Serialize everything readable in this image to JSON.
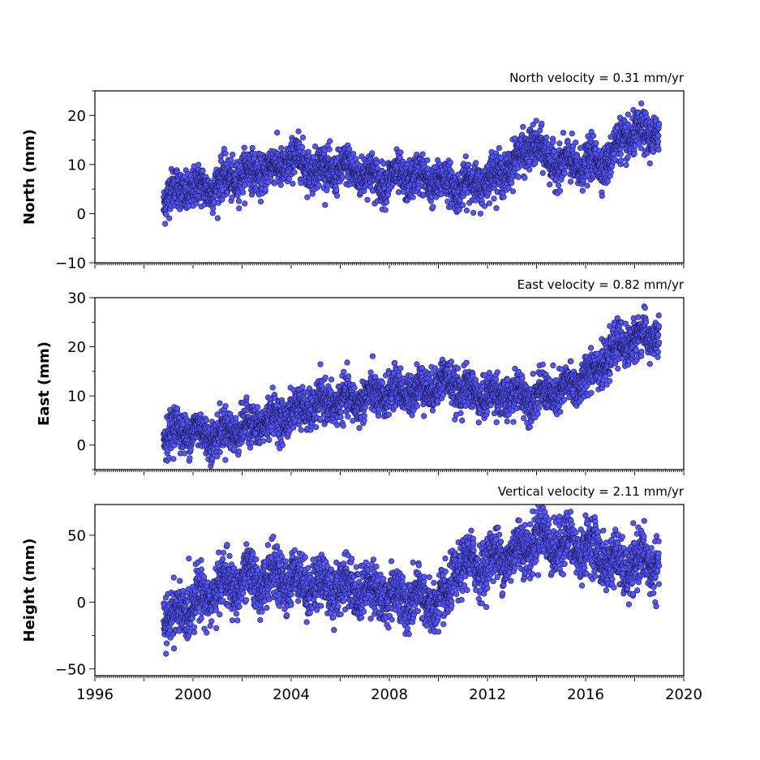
{
  "chart_data": [
    {
      "type": "scatter",
      "title": "North velocity = 0.31 mm/yr",
      "xlabel": "",
      "ylabel": "North (mm)",
      "xlim": [
        1996,
        2020
      ],
      "ylim": [
        -10,
        25
      ],
      "y_ticks": [
        -10,
        0,
        10,
        20
      ],
      "y_tick_labels": [
        "−10",
        "0",
        "10",
        "20"
      ],
      "x_ticks": [
        1996,
        1998,
        2000,
        2002,
        2004,
        2006,
        2008,
        2010,
        2012,
        2014,
        2016,
        2018,
        2020
      ],
      "grid": false,
      "marker_color": "#5555ff",
      "marker_edge_color": "#1a1a4a",
      "series": [
        {
          "x": [
            1998.8,
            1999.0,
            1999.3,
            1999.6,
            2000.0,
            2000.5,
            2001.0,
            2001.5,
            2002.0,
            2002.5,
            2003.0,
            2003.5,
            2004.0,
            2004.5,
            2005.0,
            2005.5,
            2006.0,
            2006.5,
            2007.0,
            2007.5,
            2008.0,
            2008.5,
            2009.0,
            2009.5,
            2010.0,
            2010.5,
            2011.0,
            2011.5,
            2012.0,
            2012.5,
            2013.0,
            2013.5,
            2013.8,
            2014.2,
            2014.6,
            2015.0,
            2015.5,
            2016.0,
            2016.5,
            2017.0,
            2017.3,
            2017.6,
            2018.0,
            2018.5,
            2019.0
          ],
          "y": [
            2.5,
            4,
            4.5,
            5,
            5,
            5,
            6,
            7,
            8,
            8.5,
            9,
            9.5,
            11,
            10.5,
            9,
            9,
            9,
            9,
            8,
            7,
            7,
            7.5,
            7.5,
            7,
            6.5,
            6,
            5.5,
            6,
            7,
            8,
            10,
            12,
            15,
            12,
            11,
            10,
            10,
            10,
            10.5,
            11,
            14,
            15.5,
            16,
            16,
            17
          ]
        }
      ]
    },
    {
      "type": "scatter",
      "title": "East velocity = 0.82 mm/yr",
      "xlabel": "",
      "ylabel": "East (mm)",
      "xlim": [
        1996,
        2020
      ],
      "ylim": [
        -5,
        30
      ],
      "y_ticks": [
        0,
        10,
        20,
        30
      ],
      "y_tick_labels": [
        "0",
        "10",
        "20",
        "30"
      ],
      "x_ticks": [
        1996,
        1998,
        2000,
        2002,
        2004,
        2006,
        2008,
        2010,
        2012,
        2014,
        2016,
        2018,
        2020
      ],
      "grid": false,
      "marker_color": "#5555ff",
      "marker_edge_color": "#1a1a4a",
      "series": [
        {
          "x": [
            1998.8,
            1999.0,
            1999.3,
            1999.6,
            2000.0,
            2000.5,
            2001.0,
            2001.5,
            2002.0,
            2002.5,
            2003.0,
            2003.5,
            2004.0,
            2004.5,
            2005.0,
            2005.5,
            2006.0,
            2006.5,
            2007.0,
            2007.5,
            2008.0,
            2008.5,
            2009.0,
            2009.5,
            2010.0,
            2010.5,
            2011.0,
            2011.5,
            2012.0,
            2012.5,
            2013.0,
            2013.5,
            2014.0,
            2014.5,
            2015.0,
            2015.5,
            2016.0,
            2016.5,
            2017.0,
            2017.3,
            2017.6,
            2018.0,
            2018.5,
            2019.0
          ],
          "y": [
            2,
            2,
            3,
            3,
            3,
            2,
            2,
            3,
            3.5,
            4,
            5,
            5.5,
            6.5,
            7.5,
            8,
            8.5,
            9,
            9,
            9.5,
            10,
            10.5,
            11,
            11,
            11.5,
            12.5,
            13,
            11,
            10.5,
            10,
            10,
            10,
            10,
            10,
            10.5,
            11,
            12,
            14,
            16,
            18,
            20,
            21,
            21.5,
            22,
            22.5
          ]
        }
      ]
    },
    {
      "type": "scatter",
      "title": "Vertical velocity = 2.11 mm/yr",
      "xlabel": "",
      "ylabel": "Height (mm)",
      "xlim": [
        1996,
        2020
      ],
      "ylim": [
        -55,
        73
      ],
      "y_ticks": [
        -50,
        0,
        50
      ],
      "y_tick_labels": [
        "−50",
        "0",
        "50"
      ],
      "x_ticks": [
        1996,
        1998,
        2000,
        2002,
        2004,
        2006,
        2008,
        2010,
        2012,
        2014,
        2016,
        2018,
        2020
      ],
      "x_tick_labels": [
        "1996",
        "2000",
        "2004",
        "2008",
        "2012",
        "2016",
        "2020"
      ],
      "grid": false,
      "marker_color": "#5555ff",
      "marker_edge_color": "#1a1a4a",
      "series": [
        {
          "x": [
            1998.8,
            1999.0,
            1999.3,
            1999.6,
            2000.0,
            2000.5,
            2001.0,
            2001.5,
            2002.0,
            2002.5,
            2003.0,
            2003.5,
            2004.0,
            2004.5,
            2005.0,
            2005.5,
            2006.0,
            2006.5,
            2007.0,
            2007.5,
            2008.0,
            2008.5,
            2009.0,
            2009.5,
            2010.0,
            2010.4,
            2010.6,
            2011.0,
            2011.5,
            2012.0,
            2012.5,
            2013.0,
            2013.5,
            2014.0,
            2014.5,
            2015.0,
            2015.5,
            2016.0,
            2016.5,
            2017.0,
            2017.5,
            2018.0,
            2018.5,
            2019.0
          ],
          "y": [
            -10,
            -15,
            -12,
            -5,
            0,
            5,
            10,
            13,
            15,
            16,
            17,
            18,
            17,
            15,
            13,
            12,
            12,
            11,
            10,
            7,
            5,
            3,
            2,
            1,
            0,
            -2,
            25,
            27,
            28,
            30,
            33,
            36,
            40,
            50,
            45,
            43,
            42,
            40,
            38,
            30,
            25,
            28,
            30,
            30
          ]
        }
      ]
    }
  ]
}
